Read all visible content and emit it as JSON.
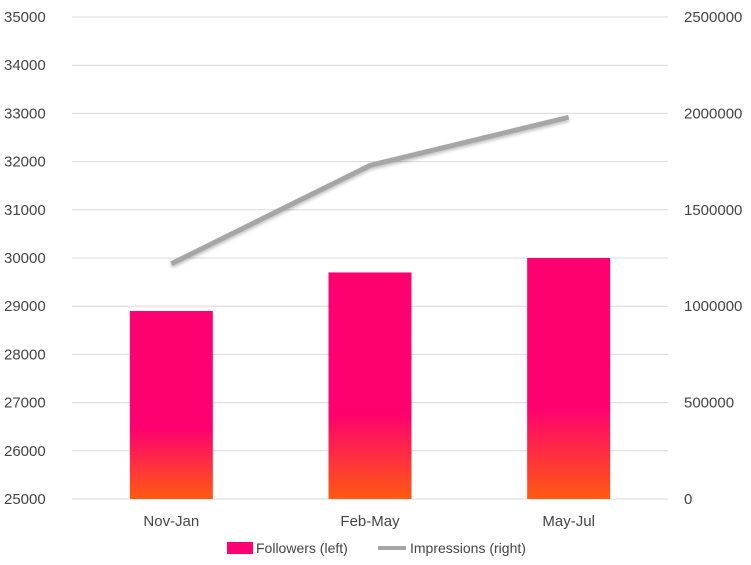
{
  "chart_data": {
    "type": "bar",
    "categories": [
      "Nov-Jan",
      "Feb-May",
      "May-Jul"
    ],
    "series": [
      {
        "name": "Followers (left)",
        "type": "bar",
        "axis": "left",
        "values": [
          28900,
          29700,
          30000
        ],
        "color": "#ff0070",
        "gradient_bottom_color": "#ff5a12"
      },
      {
        "name": "Impressions (right)",
        "type": "line",
        "axis": "right",
        "values": [
          1220000,
          1730000,
          1980000
        ],
        "color": "#a6a6a6"
      }
    ],
    "y_left": {
      "ylim": [
        25000,
        35000
      ],
      "ticks": [
        "25000",
        "26000",
        "27000",
        "28000",
        "29000",
        "30000",
        "31000",
        "32000",
        "33000",
        "34000",
        "35000"
      ]
    },
    "y_right": {
      "ylim": [
        0,
        2500000
      ],
      "ticks": [
        "0",
        "500000",
        "1000000",
        "1500000",
        "2000000",
        "2500000"
      ]
    },
    "grid": true,
    "grid_color": "#d9d9d9",
    "legend_position": "bottom",
    "title": "",
    "xlabel": "",
    "ylabel": ""
  }
}
